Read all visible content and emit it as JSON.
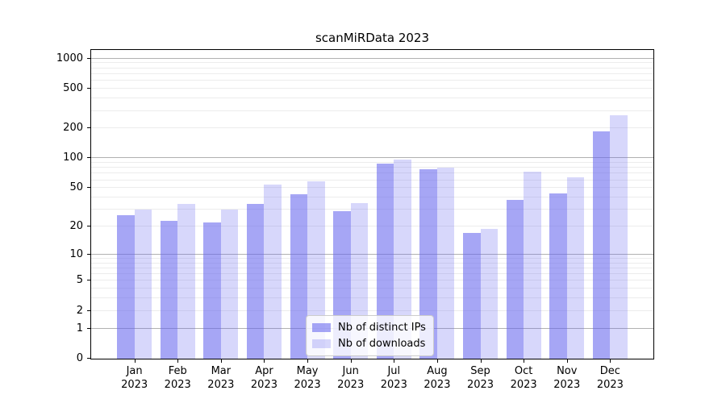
{
  "title": "scanMiRData 2023",
  "chart_data": {
    "type": "bar",
    "title": "scanMiRData 2023",
    "subtitle": "",
    "xlabel": "",
    "ylabel": "",
    "y_scale": "log1p",
    "categories": [
      "Jan",
      "Feb",
      "Mar",
      "Apr",
      "May",
      "Jun",
      "Jul",
      "Aug",
      "Sep",
      "Oct",
      "Nov",
      "Dec"
    ],
    "year_label": "2023",
    "series": [
      {
        "name": "Nb of distinct IPs",
        "color": "rgba(102,102,238,0.58)",
        "values": [
          26,
          23,
          22,
          34,
          43,
          29,
          88,
          78,
          17,
          38,
          44,
          185
        ]
      },
      {
        "name": "Nb of downloads",
        "color": "rgba(102,102,238,0.26)",
        "values": [
          30,
          34,
          30,
          54,
          58,
          35,
          97,
          80,
          19,
          73,
          64,
          270
        ]
      }
    ],
    "y_axis": {
      "ticks": [
        1000,
        500,
        200,
        100,
        50,
        20,
        10,
        5,
        2,
        1,
        0
      ],
      "major_gridlines": [
        1,
        10,
        100,
        1000
      ],
      "minor_gridlines": [
        2,
        3,
        4,
        5,
        6,
        7,
        8,
        9,
        20,
        30,
        40,
        50,
        60,
        70,
        80,
        90,
        200,
        300,
        400,
        500,
        600,
        700,
        800,
        900
      ],
      "top_value": 1221
    },
    "legend_position": "lower center",
    "grid": true,
    "colors": {
      "bar_base": "#6666ee",
      "major_grid": "#b1b1b1",
      "minor_grid": "#ececec",
      "spine": "#000000",
      "legend_border": "#cccccc"
    }
  }
}
